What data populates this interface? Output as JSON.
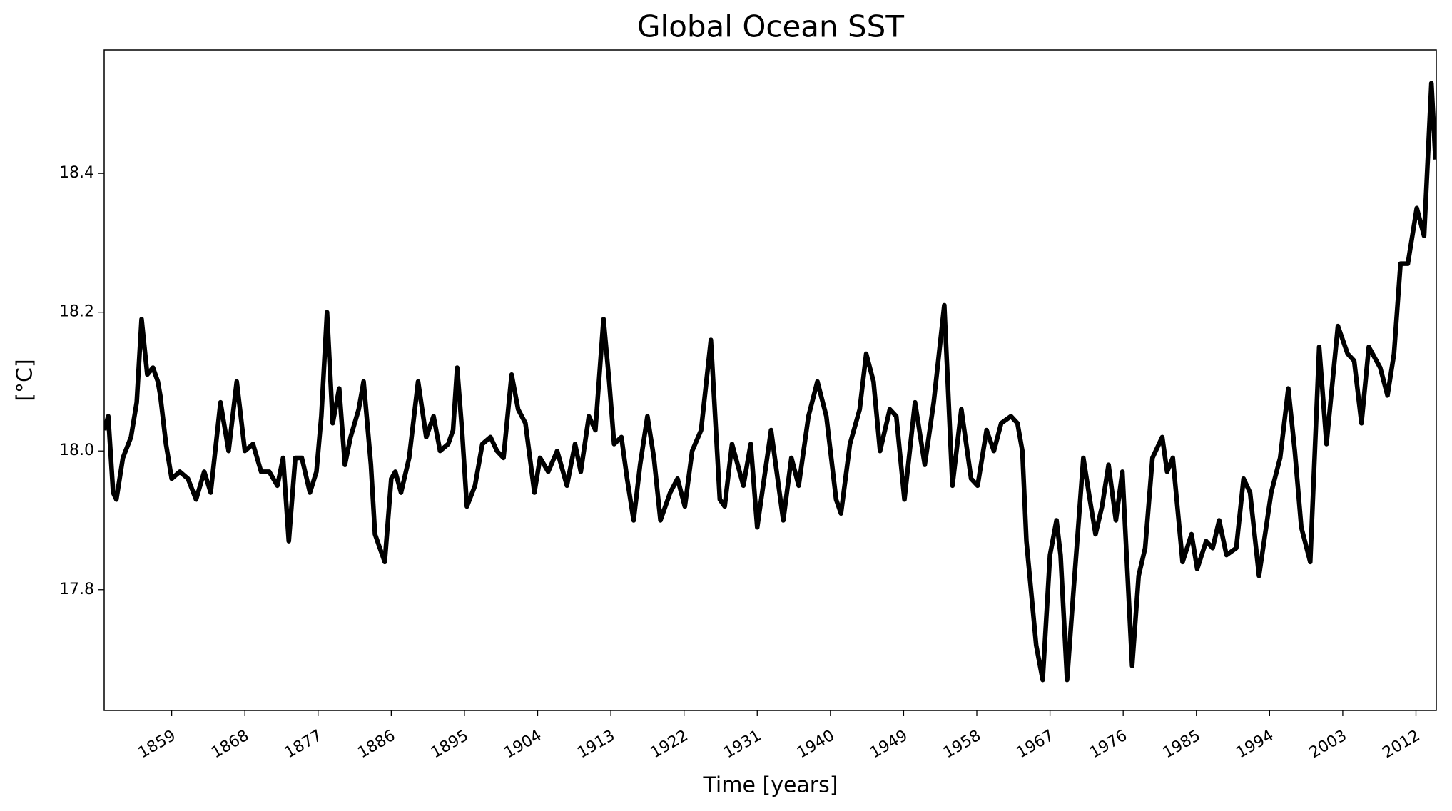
{
  "chart_data": {
    "type": "line",
    "title": "Global Ocean SST",
    "xlabel": "Time [years]",
    "ylabel": "[°C]",
    "x": [
      1850.7,
      1851.2,
      1851.8,
      1852.2,
      1853,
      1854,
      1854.7,
      1855.3,
      1856,
      1856.7,
      1857.3,
      1857.6,
      1858.3,
      1859,
      1860,
      1861,
      1862,
      1863,
      1863.8,
      1865,
      1866,
      1867,
      1868,
      1869,
      1870,
      1871,
      1872,
      1872.7,
      1873.4,
      1874.2,
      1875,
      1876,
      1876.8,
      1877.4,
      1878.1,
      1878.8,
      1879.6,
      1880.3,
      1881,
      1882,
      1882.6,
      1883.5,
      1884,
      1885.2,
      1886,
      1886.5,
      1887.2,
      1888.2,
      1889.3,
      1890.3,
      1891.2,
      1892,
      1893,
      1893.6,
      1894.1,
      1894.7,
      1895.3,
      1896.3,
      1897.2,
      1898.2,
      1899,
      1899.8,
      1900.8,
      1901.6,
      1902.5,
      1903.6,
      1904.3,
      1905.3,
      1906.4,
      1907.6,
      1908.6,
      1909.3,
      1910.3,
      1911.1,
      1912.1,
      1912.8,
      1913.4,
      1914.3,
      1915,
      1915.8,
      1916.6,
      1917.5,
      1918.3,
      1919.1,
      1920.3,
      1921.2,
      1922.1,
      1923,
      1924.1,
      1925.3,
      1926.4,
      1927,
      1927.9,
      1929.3,
      1930.2,
      1931,
      1932.7,
      1934.2,
      1935.2,
      1936.1,
      1937.3,
      1938.4,
      1939.5,
      1940.7,
      1941.3,
      1942.4,
      1943.6,
      1944.4,
      1945.3,
      1946.1,
      1947.3,
      1948.1,
      1949.1,
      1950.4,
      1951.6,
      1952.7,
      1954,
      1955,
      1956.1,
      1957.3,
      1958.1,
      1959.2,
      1960.1,
      1961,
      1962.2,
      1963,
      1963.6,
      1964.1,
      1965.3,
      1966.1,
      1967,
      1967.8,
      1968.3,
      1969.1,
      1969.9,
      1971.1,
      1971.9,
      1972.6,
      1973.4,
      1974.2,
      1975.1,
      1975.9,
      1977.1,
      1977.9,
      1978.7,
      1979.6,
      1980.8,
      1981.4,
      1982.1,
      1983.3,
      1984.4,
      1985.1,
      1986.2,
      1987,
      1987.8,
      1988.7,
      1989.9,
      1990.8,
      1991.6,
      1992.7,
      1994.2,
      1995.3,
      1996.3,
      1997.1,
      1997.9,
      1999,
      2000.1,
      2001,
      2002.4,
      2003.6,
      2004.4,
      2005.3,
      2006.2,
      2007.6,
      2008.5,
      2009.3,
      2010.1,
      2011,
      2012.1,
      2013,
      2013.9,
      2014.4
    ],
    "series": [
      {
        "color": "#000000",
        "values": [
          18.03,
          18.05,
          17.94,
          17.93,
          17.99,
          18.02,
          18.07,
          18.19,
          18.11,
          18.12,
          18.1,
          18.08,
          18.01,
          17.96,
          17.97,
          17.96,
          17.93,
          17.97,
          17.94,
          18.07,
          18.0,
          18.1,
          18.0,
          18.01,
          17.97,
          17.97,
          17.95,
          17.99,
          17.87,
          17.99,
          17.99,
          17.94,
          17.97,
          18.05,
          18.2,
          18.04,
          18.09,
          17.98,
          18.02,
          18.06,
          18.1,
          17.98,
          17.88,
          17.84,
          17.96,
          17.97,
          17.94,
          17.99,
          18.1,
          18.02,
          18.05,
          18.0,
          18.01,
          18.03,
          18.12,
          18.03,
          17.92,
          17.95,
          18.01,
          18.02,
          18.0,
          17.99,
          18.11,
          18.06,
          18.04,
          17.94,
          17.99,
          17.97,
          18.0,
          17.95,
          18.01,
          17.97,
          18.05,
          18.03,
          18.19,
          18.1,
          18.01,
          18.02,
          17.96,
          17.9,
          17.98,
          18.05,
          17.99,
          17.9,
          17.94,
          17.96,
          17.92,
          18.0,
          18.03,
          18.16,
          17.93,
          17.92,
          18.01,
          17.95,
          18.01,
          17.89,
          18.03,
          17.9,
          17.99,
          17.95,
          18.05,
          18.1,
          18.05,
          17.93,
          17.91,
          18.01,
          18.06,
          18.14,
          18.1,
          18.0,
          18.06,
          18.05,
          17.93,
          18.07,
          17.98,
          18.07,
          18.21,
          17.95,
          18.06,
          17.96,
          17.95,
          18.03,
          18.0,
          18.04,
          18.05,
          18.04,
          18.0,
          17.87,
          17.72,
          17.67,
          17.85,
          17.9,
          17.85,
          17.67,
          17.8,
          17.99,
          17.93,
          17.88,
          17.92,
          17.98,
          17.9,
          17.97,
          17.69,
          17.82,
          17.86,
          17.99,
          18.02,
          17.97,
          17.99,
          17.84,
          17.88,
          17.83,
          17.87,
          17.86,
          17.9,
          17.85,
          17.86,
          17.96,
          17.94,
          17.82,
          17.94,
          17.99,
          18.09,
          18.0,
          17.89,
          17.84,
          18.15,
          18.01,
          18.18,
          18.14,
          18.13,
          18.04,
          18.15,
          18.12,
          18.08,
          18.14,
          18.27,
          18.27,
          18.35,
          18.31,
          18.53,
          18.42
        ]
      }
    ],
    "xlim": [
      1850.7,
      2014.5
    ],
    "ylim": [
      17.626,
      18.578
    ],
    "xticks": [
      1859,
      1868,
      1877,
      1886,
      1895,
      1904,
      1913,
      1922,
      1931,
      1940,
      1949,
      1958,
      1967,
      1976,
      1985,
      1994,
      2003,
      2012
    ],
    "yticks": [
      17.8,
      {
        "value": 18,
        "label": "18.0"
      },
      18.2,
      18.4
    ]
  }
}
